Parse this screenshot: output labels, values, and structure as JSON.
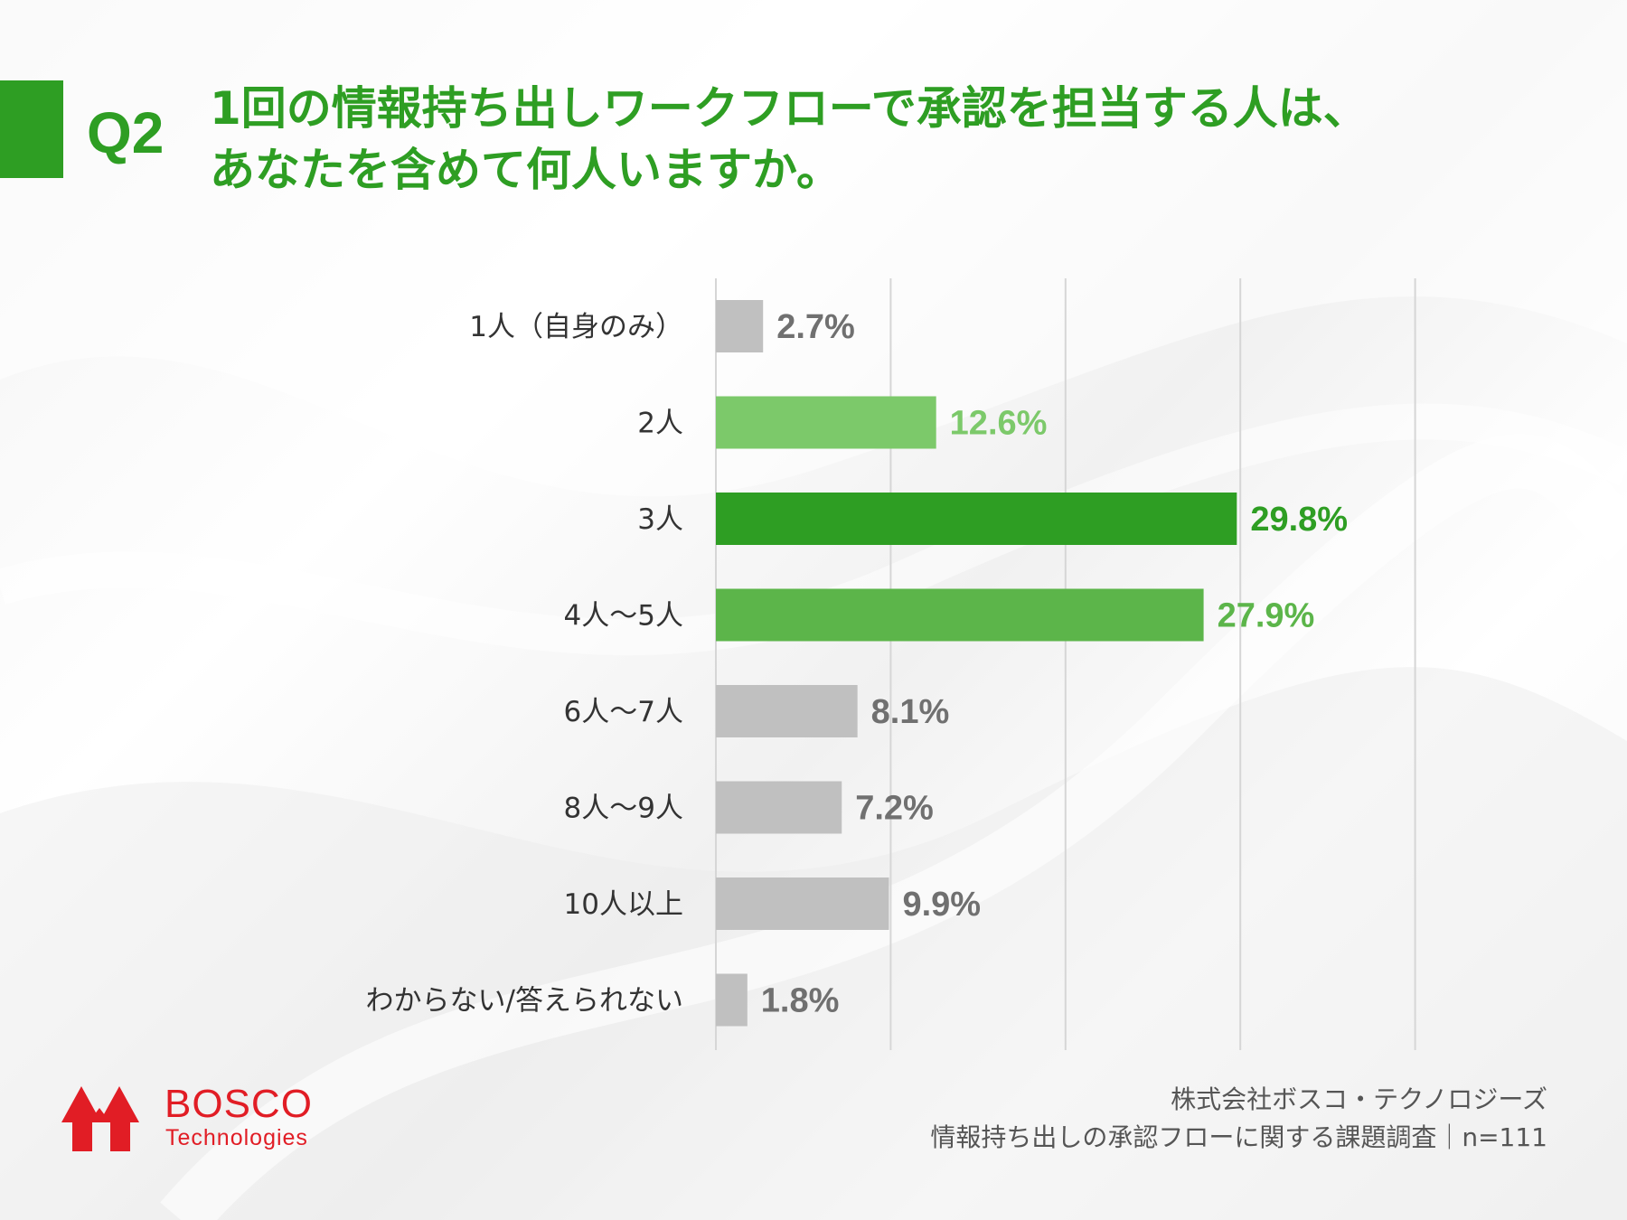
{
  "header": {
    "q_label": "Q2",
    "question_lines": [
      "1回の情報持ち出しワークフローで承認を担当する人は、",
      "あなたを含めて何人いますか。"
    ]
  },
  "chart_data": {
    "type": "bar",
    "orientation": "horizontal",
    "categories": [
      "1人（自身のみ）",
      "2人",
      "3人",
      "4人～5人",
      "6人～7人",
      "8人～9人",
      "10人以上",
      "わからない/答えられない"
    ],
    "values": [
      2.7,
      12.6,
      29.8,
      27.9,
      8.1,
      7.2,
      9.9,
      1.8
    ],
    "value_labels": [
      "2.7%",
      "12.6%",
      "29.8%",
      "27.9%",
      "8.1%",
      "7.2%",
      "9.9%",
      "1.8%"
    ],
    "bar_colors": [
      "#c0c0c0",
      "#7cc96a",
      "#2e9e23",
      "#5cb54a",
      "#c0c0c0",
      "#c0c0c0",
      "#c0c0c0",
      "#c0c0c0"
    ],
    "label_colors": [
      "#707070",
      "#7cc96a",
      "#2e9e23",
      "#5cb54a",
      "#707070",
      "#707070",
      "#707070",
      "#707070"
    ],
    "xlim": [
      0,
      40
    ],
    "grid": true,
    "gridline_values": [
      0,
      10,
      20,
      30,
      40
    ],
    "title": "",
    "xlabel": "",
    "ylabel": ""
  },
  "logo": {
    "name": "BOSCO",
    "sub": "Technologies"
  },
  "source": {
    "line1": "株式会社ボスコ・テクノロジーズ",
    "line2": "情報持ち出しの承認フローに関する課題調査｜n=111"
  },
  "colors": {
    "accent": "#2e9e23",
    "brand_red": "#e11d25",
    "text_dark": "#333333",
    "grid": "#d6d6d6"
  }
}
